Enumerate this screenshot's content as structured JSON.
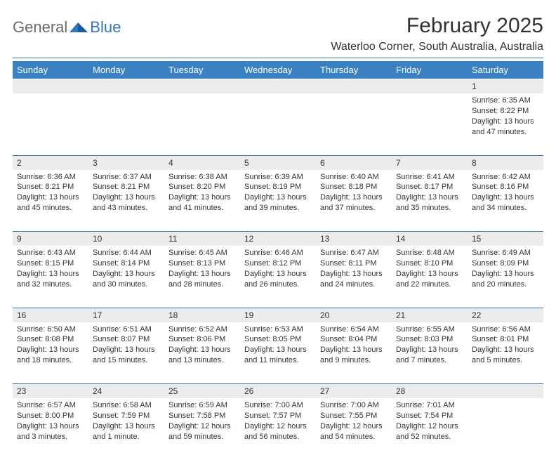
{
  "logo": {
    "general": "General",
    "blue": "Blue"
  },
  "title": "February 2025",
  "subtitle": "Waterloo Corner, South Australia, Australia",
  "colors": {
    "header_bg": "#3a81c4",
    "rule": "#2f78bd",
    "daynum_bg": "#ececec",
    "text": "#333333",
    "logo_gray": "#6b6b6b",
    "logo_blue": "#2f78bd"
  },
  "dayHeaders": [
    "Sunday",
    "Monday",
    "Tuesday",
    "Wednesday",
    "Thursday",
    "Friday",
    "Saturday"
  ],
  "weeks": [
    [
      null,
      null,
      null,
      null,
      null,
      null,
      {
        "n": "1",
        "sunrise": "Sunrise: 6:35 AM",
        "sunset": "Sunset: 8:22 PM",
        "daylight": "Daylight: 13 hours and 47 minutes."
      }
    ],
    [
      {
        "n": "2",
        "sunrise": "Sunrise: 6:36 AM",
        "sunset": "Sunset: 8:21 PM",
        "daylight": "Daylight: 13 hours and 45 minutes."
      },
      {
        "n": "3",
        "sunrise": "Sunrise: 6:37 AM",
        "sunset": "Sunset: 8:21 PM",
        "daylight": "Daylight: 13 hours and 43 minutes."
      },
      {
        "n": "4",
        "sunrise": "Sunrise: 6:38 AM",
        "sunset": "Sunset: 8:20 PM",
        "daylight": "Daylight: 13 hours and 41 minutes."
      },
      {
        "n": "5",
        "sunrise": "Sunrise: 6:39 AM",
        "sunset": "Sunset: 8:19 PM",
        "daylight": "Daylight: 13 hours and 39 minutes."
      },
      {
        "n": "6",
        "sunrise": "Sunrise: 6:40 AM",
        "sunset": "Sunset: 8:18 PM",
        "daylight": "Daylight: 13 hours and 37 minutes."
      },
      {
        "n": "7",
        "sunrise": "Sunrise: 6:41 AM",
        "sunset": "Sunset: 8:17 PM",
        "daylight": "Daylight: 13 hours and 35 minutes."
      },
      {
        "n": "8",
        "sunrise": "Sunrise: 6:42 AM",
        "sunset": "Sunset: 8:16 PM",
        "daylight": "Daylight: 13 hours and 34 minutes."
      }
    ],
    [
      {
        "n": "9",
        "sunrise": "Sunrise: 6:43 AM",
        "sunset": "Sunset: 8:15 PM",
        "daylight": "Daylight: 13 hours and 32 minutes."
      },
      {
        "n": "10",
        "sunrise": "Sunrise: 6:44 AM",
        "sunset": "Sunset: 8:14 PM",
        "daylight": "Daylight: 13 hours and 30 minutes."
      },
      {
        "n": "11",
        "sunrise": "Sunrise: 6:45 AM",
        "sunset": "Sunset: 8:13 PM",
        "daylight": "Daylight: 13 hours and 28 minutes."
      },
      {
        "n": "12",
        "sunrise": "Sunrise: 6:46 AM",
        "sunset": "Sunset: 8:12 PM",
        "daylight": "Daylight: 13 hours and 26 minutes."
      },
      {
        "n": "13",
        "sunrise": "Sunrise: 6:47 AM",
        "sunset": "Sunset: 8:11 PM",
        "daylight": "Daylight: 13 hours and 24 minutes."
      },
      {
        "n": "14",
        "sunrise": "Sunrise: 6:48 AM",
        "sunset": "Sunset: 8:10 PM",
        "daylight": "Daylight: 13 hours and 22 minutes."
      },
      {
        "n": "15",
        "sunrise": "Sunrise: 6:49 AM",
        "sunset": "Sunset: 8:09 PM",
        "daylight": "Daylight: 13 hours and 20 minutes."
      }
    ],
    [
      {
        "n": "16",
        "sunrise": "Sunrise: 6:50 AM",
        "sunset": "Sunset: 8:08 PM",
        "daylight": "Daylight: 13 hours and 18 minutes."
      },
      {
        "n": "17",
        "sunrise": "Sunrise: 6:51 AM",
        "sunset": "Sunset: 8:07 PM",
        "daylight": "Daylight: 13 hours and 15 minutes."
      },
      {
        "n": "18",
        "sunrise": "Sunrise: 6:52 AM",
        "sunset": "Sunset: 8:06 PM",
        "daylight": "Daylight: 13 hours and 13 minutes."
      },
      {
        "n": "19",
        "sunrise": "Sunrise: 6:53 AM",
        "sunset": "Sunset: 8:05 PM",
        "daylight": "Daylight: 13 hours and 11 minutes."
      },
      {
        "n": "20",
        "sunrise": "Sunrise: 6:54 AM",
        "sunset": "Sunset: 8:04 PM",
        "daylight": "Daylight: 13 hours and 9 minutes."
      },
      {
        "n": "21",
        "sunrise": "Sunrise: 6:55 AM",
        "sunset": "Sunset: 8:03 PM",
        "daylight": "Daylight: 13 hours and 7 minutes."
      },
      {
        "n": "22",
        "sunrise": "Sunrise: 6:56 AM",
        "sunset": "Sunset: 8:01 PM",
        "daylight": "Daylight: 13 hours and 5 minutes."
      }
    ],
    [
      {
        "n": "23",
        "sunrise": "Sunrise: 6:57 AM",
        "sunset": "Sunset: 8:00 PM",
        "daylight": "Daylight: 13 hours and 3 minutes."
      },
      {
        "n": "24",
        "sunrise": "Sunrise: 6:58 AM",
        "sunset": "Sunset: 7:59 PM",
        "daylight": "Daylight: 13 hours and 1 minute."
      },
      {
        "n": "25",
        "sunrise": "Sunrise: 6:59 AM",
        "sunset": "Sunset: 7:58 PM",
        "daylight": "Daylight: 12 hours and 59 minutes."
      },
      {
        "n": "26",
        "sunrise": "Sunrise: 7:00 AM",
        "sunset": "Sunset: 7:57 PM",
        "daylight": "Daylight: 12 hours and 56 minutes."
      },
      {
        "n": "27",
        "sunrise": "Sunrise: 7:00 AM",
        "sunset": "Sunset: 7:55 PM",
        "daylight": "Daylight: 12 hours and 54 minutes."
      },
      {
        "n": "28",
        "sunrise": "Sunrise: 7:01 AM",
        "sunset": "Sunset: 7:54 PM",
        "daylight": "Daylight: 12 hours and 52 minutes."
      },
      null
    ]
  ]
}
